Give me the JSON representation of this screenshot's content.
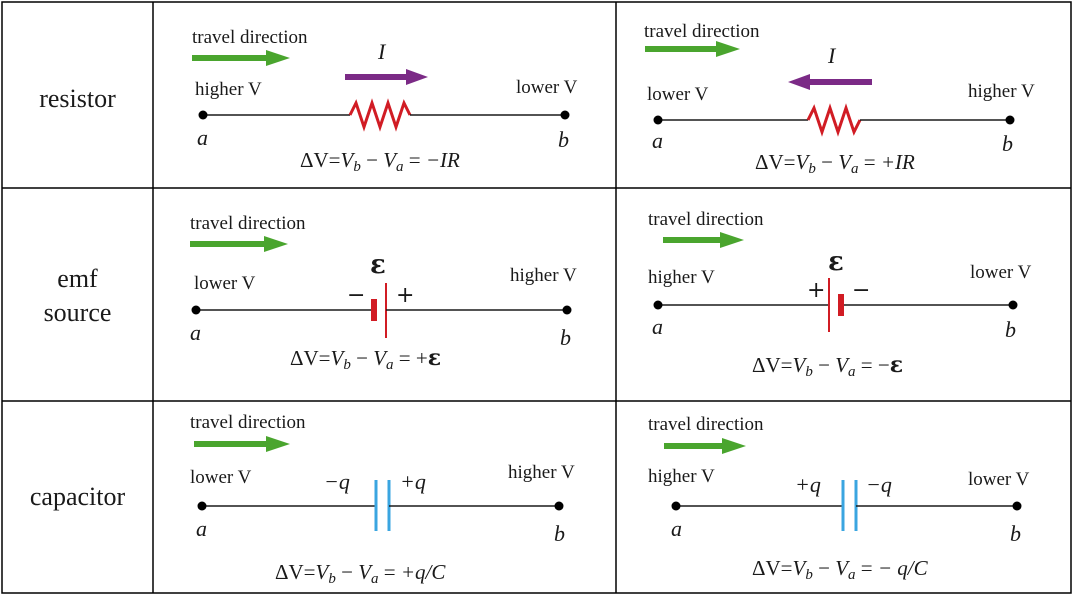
{
  "rows": {
    "resistor": {
      "label": "resistor"
    },
    "emf": {
      "label_line1": "emf",
      "label_line2": "source"
    },
    "capacitor": {
      "label": "capacitor"
    }
  },
  "common": {
    "travel": "travel direction",
    "higher": "higher V",
    "lower": "lower V",
    "point_a": "a",
    "point_b": "b",
    "current": "I",
    "emf_symbol": "ε",
    "plus": "+",
    "minus": "−",
    "neg_q": "−q",
    "pos_q": "+q"
  },
  "equations": {
    "lhs": "ΔV=",
    "v": "V",
    "sub_b": "b",
    "sub_a": "a",
    "minus": " − ",
    "eq": " = ",
    "resistor_left": "−IR",
    "resistor_right": "+IR",
    "emf_left_sign": "+",
    "emf_right_sign": "−",
    "emf_symbol": "ε",
    "capacitor_left": "+q/C",
    "capacitor_right": "− q/C"
  },
  "colors": {
    "arrow_green": "#4aa52e",
    "arrow_purple": "#7b2a86",
    "resistor_red": "#d11c24",
    "capacitor_blue": "#3aa5e0",
    "wire": "#1a1a1a"
  }
}
